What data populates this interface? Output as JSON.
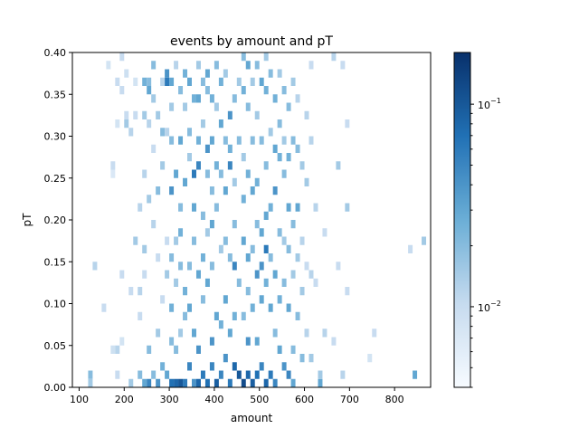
{
  "chart_data": {
    "type": "heatmap",
    "title": "events by amount and pT",
    "xlabel": "amount",
    "ylabel": "pT",
    "xlim": [
      85,
      880
    ],
    "ylim": [
      0,
      0.4
    ],
    "x_bin_width": 10,
    "y_bin_width": 0.01,
    "xticks": [
      100,
      200,
      300,
      400,
      500,
      600,
      700,
      800
    ],
    "xtick_labels": [
      "100",
      "200",
      "300",
      "400",
      "500",
      "600",
      "700",
      "800"
    ],
    "yticks": [
      0.0,
      0.05,
      0.1,
      0.15,
      0.2,
      0.25,
      0.3,
      0.35,
      0.4
    ],
    "ytick_labels": [
      "0.00",
      "0.05",
      "0.10",
      "0.15",
      "0.20",
      "0.25",
      "0.30",
      "0.35",
      "0.40"
    ],
    "colorbar": {
      "scale": "log",
      "colormap": "Blues",
      "vmin": 0.004,
      "vmax": 0.18,
      "tick_values": [
        0.01,
        0.1
      ],
      "tick_labels": [
        "10^{-2}",
        "10^{-1}"
      ]
    },
    "cells": [
      [
        120,
        0.01,
        0.02
      ],
      [
        120,
        0.0,
        0.015
      ],
      [
        130,
        0.14,
        0.012
      ],
      [
        150,
        0.09,
        0.01
      ],
      [
        160,
        0.38,
        0.008
      ],
      [
        170,
        0.04,
        0.009
      ],
      [
        170,
        0.26,
        0.01
      ],
      [
        170,
        0.25,
        0.007
      ],
      [
        180,
        0.04,
        0.012
      ],
      [
        180,
        0.31,
        0.008
      ],
      [
        180,
        0.36,
        0.01
      ],
      [
        180,
        0.01,
        0.01
      ],
      [
        190,
        0.35,
        0.01
      ],
      [
        190,
        0.05,
        0.008
      ],
      [
        190,
        0.13,
        0.01
      ],
      [
        190,
        0.39,
        0.01
      ],
      [
        200,
        0.37,
        0.009
      ],
      [
        200,
        0.32,
        0.01
      ],
      [
        200,
        0.31,
        0.015
      ],
      [
        210,
        0.3,
        0.012
      ],
      [
        210,
        0.11,
        0.01
      ],
      [
        210,
        0.0,
        0.015
      ],
      [
        220,
        0.32,
        0.01
      ],
      [
        220,
        0.17,
        0.015
      ],
      [
        220,
        0.36,
        0.008
      ],
      [
        230,
        0.11,
        0.012
      ],
      [
        230,
        0.01,
        0.02
      ],
      [
        230,
        0.08,
        0.01
      ],
      [
        230,
        0.21,
        0.012
      ],
      [
        240,
        0.36,
        0.025
      ],
      [
        240,
        0.32,
        0.015
      ],
      [
        240,
        0.0,
        0.03
      ],
      [
        240,
        0.13,
        0.01
      ],
      [
        240,
        0.25,
        0.012
      ],
      [
        240,
        0.16,
        0.015
      ],
      [
        250,
        0.36,
        0.02
      ],
      [
        250,
        0.35,
        0.03
      ],
      [
        250,
        0.0,
        0.05
      ],
      [
        250,
        0.04,
        0.02
      ],
      [
        250,
        0.22,
        0.015
      ],
      [
        250,
        0.31,
        0.012
      ],
      [
        260,
        0.38,
        0.02
      ],
      [
        260,
        0.34,
        0.015
      ],
      [
        260,
        0.28,
        0.01
      ],
      [
        260,
        0.19,
        0.012
      ],
      [
        260,
        0.01,
        0.02
      ],
      [
        270,
        0.32,
        0.015
      ],
      [
        270,
        0.23,
        0.02
      ],
      [
        270,
        0.15,
        0.01
      ],
      [
        270,
        0.0,
        0.04
      ],
      [
        270,
        0.06,
        0.015
      ],
      [
        280,
        0.36,
        0.012
      ],
      [
        280,
        0.3,
        0.02
      ],
      [
        280,
        0.1,
        0.01
      ],
      [
        280,
        0.02,
        0.025
      ],
      [
        280,
        0.26,
        0.015
      ],
      [
        290,
        0.37,
        0.04
      ],
      [
        290,
        0.36,
        0.06
      ],
      [
        290,
        0.01,
        0.03
      ],
      [
        290,
        0.13,
        0.015
      ],
      [
        290,
        0.17,
        0.01
      ],
      [
        290,
        0.3,
        0.012
      ],
      [
        300,
        0.36,
        0.03
      ],
      [
        300,
        0.23,
        0.04
      ],
      [
        300,
        0.29,
        0.02
      ],
      [
        300,
        0.33,
        0.015
      ],
      [
        300,
        0.0,
        0.07
      ],
      [
        300,
        0.05,
        0.02
      ],
      [
        300,
        0.09,
        0.025
      ],
      [
        300,
        0.15,
        0.02
      ],
      [
        310,
        0.38,
        0.012
      ],
      [
        310,
        0.12,
        0.015
      ],
      [
        310,
        0.0,
        0.08
      ],
      [
        310,
        0.25,
        0.03
      ],
      [
        310,
        0.17,
        0.015
      ],
      [
        310,
        0.04,
        0.02
      ],
      [
        320,
        0.35,
        0.02
      ],
      [
        320,
        0.29,
        0.03
      ],
      [
        320,
        0.21,
        0.02
      ],
      [
        320,
        0.18,
        0.025
      ],
      [
        320,
        0.06,
        0.015
      ],
      [
        320,
        0.0,
        0.1
      ],
      [
        320,
        0.14,
        0.02
      ],
      [
        330,
        0.37,
        0.025
      ],
      [
        330,
        0.33,
        0.015
      ],
      [
        330,
        0.24,
        0.03
      ],
      [
        330,
        0.11,
        0.025
      ],
      [
        330,
        0.0,
        0.06
      ],
      [
        330,
        0.08,
        0.02
      ],
      [
        340,
        0.36,
        0.03
      ],
      [
        340,
        0.3,
        0.02
      ],
      [
        340,
        0.27,
        0.015
      ],
      [
        340,
        0.14,
        0.02
      ],
      [
        340,
        0.02,
        0.05
      ],
      [
        340,
        0.09,
        0.03
      ],
      [
        350,
        0.34,
        0.025
      ],
      [
        350,
        0.25,
        0.06
      ],
      [
        350,
        0.21,
        0.03
      ],
      [
        350,
        0.17,
        0.02
      ],
      [
        350,
        0.0,
        0.04
      ],
      [
        350,
        0.06,
        0.03
      ],
      [
        360,
        0.38,
        0.015
      ],
      [
        360,
        0.34,
        0.03
      ],
      [
        360,
        0.29,
        0.025
      ],
      [
        360,
        0.26,
        0.05
      ],
      [
        360,
        0.13,
        0.03
      ],
      [
        360,
        0.04,
        0.04
      ],
      [
        360,
        0.0,
        0.08
      ],
      [
        370,
        0.36,
        0.02
      ],
      [
        370,
        0.31,
        0.015
      ],
      [
        370,
        0.2,
        0.02
      ],
      [
        370,
        0.15,
        0.025
      ],
      [
        370,
        0.1,
        0.02
      ],
      [
        370,
        0.01,
        0.06
      ],
      [
        380,
        0.37,
        0.03
      ],
      [
        380,
        0.35,
        0.02
      ],
      [
        380,
        0.28,
        0.04
      ],
      [
        380,
        0.25,
        0.02
      ],
      [
        380,
        0.18,
        0.015
      ],
      [
        380,
        0.12,
        0.03
      ],
      [
        380,
        0.0,
        0.07
      ],
      [
        390,
        0.34,
        0.025
      ],
      [
        390,
        0.29,
        0.03
      ],
      [
        390,
        0.23,
        0.02
      ],
      [
        390,
        0.19,
        0.03
      ],
      [
        390,
        0.14,
        0.02
      ],
      [
        390,
        0.05,
        0.04
      ],
      [
        390,
        0.02,
        0.05
      ],
      [
        400,
        0.38,
        0.02
      ],
      [
        400,
        0.33,
        0.015
      ],
      [
        400,
        0.26,
        0.025
      ],
      [
        400,
        0.21,
        0.02
      ],
      [
        400,
        0.08,
        0.03
      ],
      [
        400,
        0.0,
        0.09
      ],
      [
        410,
        0.36,
        0.025
      ],
      [
        410,
        0.31,
        0.03
      ],
      [
        410,
        0.25,
        0.02
      ],
      [
        410,
        0.16,
        0.015
      ],
      [
        410,
        0.07,
        0.025
      ],
      [
        410,
        0.01,
        0.05
      ],
      [
        420,
        0.37,
        0.015
      ],
      [
        420,
        0.29,
        0.02
      ],
      [
        420,
        0.23,
        0.03
      ],
      [
        420,
        0.17,
        0.02
      ],
      [
        420,
        0.1,
        0.03
      ],
      [
        420,
        0.03,
        0.04
      ],
      [
        430,
        0.32,
        0.04
      ],
      [
        430,
        0.28,
        0.025
      ],
      [
        430,
        0.26,
        0.05
      ],
      [
        430,
        0.15,
        0.02
      ],
      [
        430,
        0.06,
        0.03
      ],
      [
        430,
        0.0,
        0.06
      ],
      [
        440,
        0.34,
        0.02
      ],
      [
        440,
        0.24,
        0.015
      ],
      [
        440,
        0.19,
        0.02
      ],
      [
        440,
        0.14,
        0.05
      ],
      [
        440,
        0.08,
        0.025
      ],
      [
        440,
        0.02,
        0.08
      ],
      [
        450,
        0.36,
        0.015
      ],
      [
        450,
        0.29,
        0.02
      ],
      [
        450,
        0.12,
        0.02
      ],
      [
        450,
        0.01,
        0.1
      ],
      [
        460,
        0.39,
        0.02
      ],
      [
        460,
        0.35,
        0.025
      ],
      [
        460,
        0.27,
        0.015
      ],
      [
        460,
        0.22,
        0.025
      ],
      [
        460,
        0.17,
        0.03
      ],
      [
        460,
        0.08,
        0.02
      ],
      [
        460,
        0.0,
        0.12
      ],
      [
        470,
        0.38,
        0.03
      ],
      [
        470,
        0.33,
        0.02
      ],
      [
        470,
        0.25,
        0.025
      ],
      [
        470,
        0.15,
        0.03
      ],
      [
        470,
        0.11,
        0.02
      ],
      [
        470,
        0.05,
        0.04
      ],
      [
        470,
        0.01,
        0.08
      ],
      [
        480,
        0.36,
        0.015
      ],
      [
        480,
        0.29,
        0.02
      ],
      [
        480,
        0.23,
        0.03
      ],
      [
        480,
        0.16,
        0.02
      ],
      [
        480,
        0.09,
        0.025
      ],
      [
        480,
        0.0,
        0.09
      ],
      [
        490,
        0.38,
        0.02
      ],
      [
        490,
        0.32,
        0.015
      ],
      [
        490,
        0.24,
        0.025
      ],
      [
        490,
        0.19,
        0.02
      ],
      [
        490,
        0.13,
        0.04
      ],
      [
        490,
        0.05,
        0.03
      ],
      [
        490,
        0.01,
        0.07
      ],
      [
        500,
        0.36,
        0.03
      ],
      [
        500,
        0.29,
        0.02
      ],
      [
        500,
        0.18,
        0.03
      ],
      [
        500,
        0.14,
        0.04
      ],
      [
        500,
        0.1,
        0.03
      ],
      [
        500,
        0.02,
        0.05
      ],
      [
        510,
        0.39,
        0.015
      ],
      [
        510,
        0.35,
        0.025
      ],
      [
        510,
        0.26,
        0.02
      ],
      [
        510,
        0.2,
        0.03
      ],
      [
        510,
        0.16,
        0.06
      ],
      [
        510,
        0.12,
        0.025
      ],
      [
        510,
        0.0,
        0.08
      ],
      [
        520,
        0.37,
        0.02
      ],
      [
        520,
        0.3,
        0.015
      ],
      [
        520,
        0.21,
        0.025
      ],
      [
        520,
        0.15,
        0.02
      ],
      [
        520,
        0.09,
        0.03
      ],
      [
        520,
        0.01,
        0.06
      ],
      [
        530,
        0.34,
        0.025
      ],
      [
        530,
        0.28,
        0.03
      ],
      [
        530,
        0.23,
        0.04
      ],
      [
        530,
        0.13,
        0.03
      ],
      [
        530,
        0.06,
        0.02
      ],
      [
        530,
        0.0,
        0.05
      ],
      [
        540,
        0.37,
        0.015
      ],
      [
        540,
        0.31,
        0.02
      ],
      [
        540,
        0.27,
        0.025
      ],
      [
        540,
        0.18,
        0.02
      ],
      [
        540,
        0.1,
        0.025
      ],
      [
        540,
        0.04,
        0.03
      ],
      [
        550,
        0.35,
        0.02
      ],
      [
        550,
        0.29,
        0.015
      ],
      [
        550,
        0.25,
        0.02
      ],
      [
        550,
        0.17,
        0.015
      ],
      [
        550,
        0.12,
        0.02
      ],
      [
        550,
        0.02,
        0.04
      ],
      [
        560,
        0.33,
        0.02
      ],
      [
        560,
        0.27,
        0.025
      ],
      [
        560,
        0.21,
        0.03
      ],
      [
        560,
        0.16,
        0.02
      ],
      [
        560,
        0.09,
        0.03
      ],
      [
        560,
        0.01,
        0.05
      ],
      [
        570,
        0.36,
        0.015
      ],
      [
        570,
        0.29,
        0.02
      ],
      [
        570,
        0.19,
        0.02
      ],
      [
        570,
        0.13,
        0.015
      ],
      [
        570,
        0.04,
        0.02
      ],
      [
        570,
        0.0,
        0.03
      ],
      [
        580,
        0.34,
        0.012
      ],
      [
        580,
        0.28,
        0.02
      ],
      [
        580,
        0.21,
        0.03
      ],
      [
        580,
        0.15,
        0.015
      ],
      [
        580,
        0.08,
        0.02
      ],
      [
        590,
        0.26,
        0.015
      ],
      [
        590,
        0.17,
        0.012
      ],
      [
        590,
        0.11,
        0.015
      ],
      [
        590,
        0.03,
        0.02
      ],
      [
        600,
        0.32,
        0.012
      ],
      [
        600,
        0.24,
        0.015
      ],
      [
        600,
        0.14,
        0.01
      ],
      [
        600,
        0.06,
        0.012
      ],
      [
        610,
        0.38,
        0.01
      ],
      [
        610,
        0.29,
        0.012
      ],
      [
        610,
        0.13,
        0.012
      ],
      [
        610,
        0.03,
        0.015
      ],
      [
        620,
        0.12,
        0.01
      ],
      [
        620,
        0.21,
        0.012
      ],
      [
        630,
        0.0,
        0.03
      ],
      [
        630,
        0.01,
        0.015
      ],
      [
        640,
        0.18,
        0.01
      ],
      [
        640,
        0.06,
        0.012
      ],
      [
        660,
        0.05,
        0.01
      ],
      [
        660,
        0.39,
        0.012
      ],
      [
        670,
        0.26,
        0.015
      ],
      [
        670,
        0.14,
        0.01
      ],
      [
        680,
        0.01,
        0.012
      ],
      [
        680,
        0.38,
        0.01
      ],
      [
        690,
        0.31,
        0.01
      ],
      [
        690,
        0.21,
        0.015
      ],
      [
        690,
        0.11,
        0.01
      ],
      [
        740,
        0.03,
        0.008
      ],
      [
        750,
        0.06,
        0.01
      ],
      [
        830,
        0.16,
        0.01
      ],
      [
        840,
        0.01,
        0.03
      ],
      [
        860,
        0.17,
        0.015
      ]
    ]
  }
}
